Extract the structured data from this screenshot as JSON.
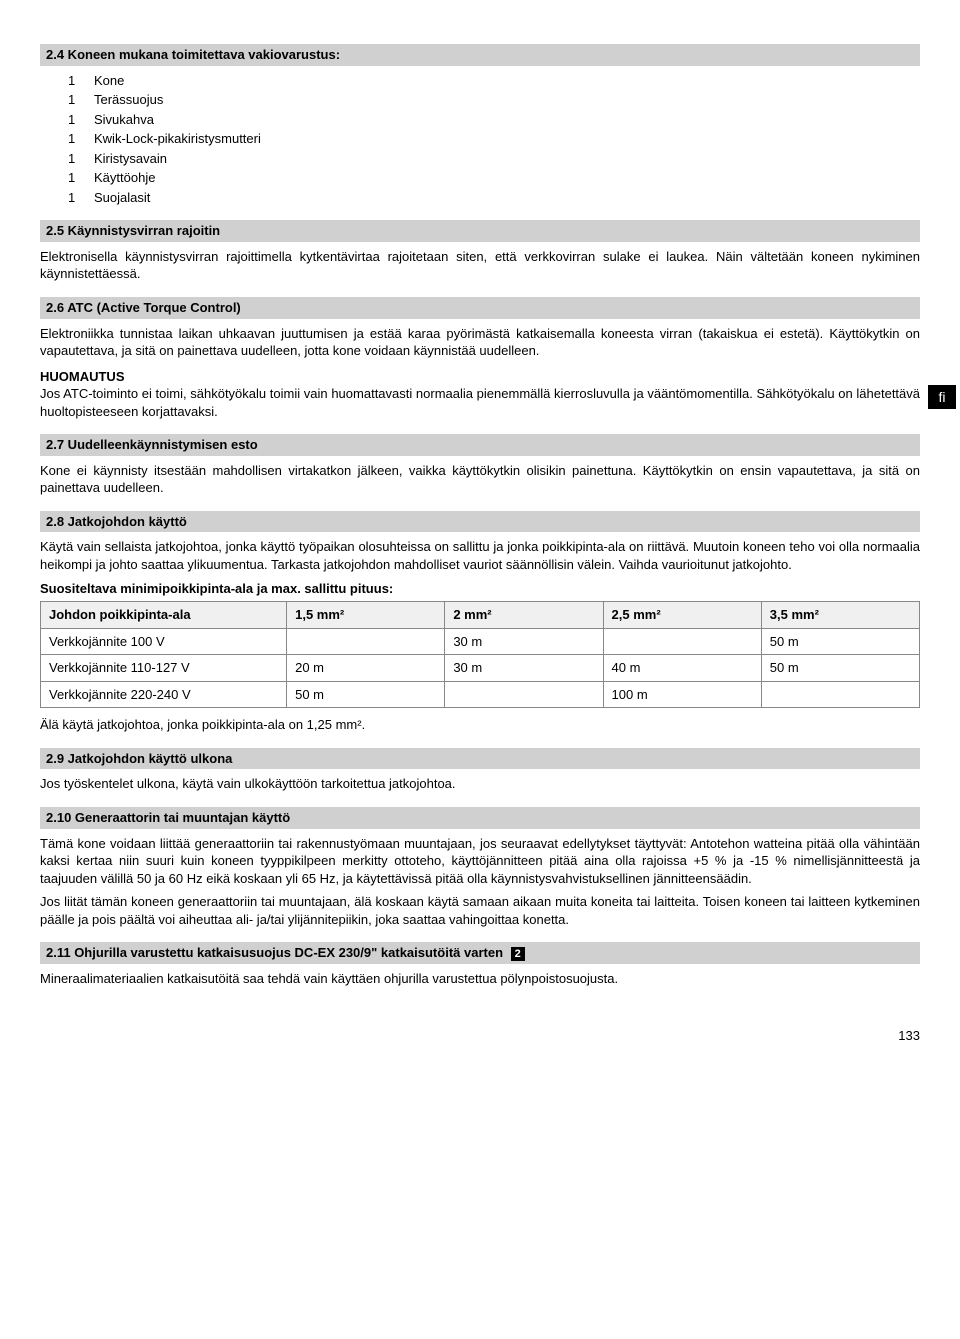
{
  "sections": {
    "s24": {
      "title": "2.4 Koneen mukana toimitettava vakiovarustus:"
    },
    "s25": {
      "title": "2.5 Käynnistysvirran rajoitin",
      "body": "Elektronisella käynnistysvirran rajoittimella kytkentävirtaa rajoitetaan siten, että verkkovirran sulake ei laukea. Näin vältetään koneen nykiminen käynnistettäessä."
    },
    "s26": {
      "title": "2.6 ATC (Active Torque Control)",
      "body": "Elektroniikka tunnistaa laikan uhkaavan juuttumisen ja estää karaa pyörimästä katkaisemalla koneesta virran (takaiskua ei estetä). Käyttökytkin on vapautettava, ja sitä on painettava uudelleen, jotta kone voidaan käynnistää uudelleen."
    },
    "s27": {
      "title": "2.7 Uudelleenkäynnistymisen esto",
      "body": "Kone ei käynnisty itsestään mahdollisen virtakatkon jälkeen, vaikka käyttökytkin olisikin painettuna. Käyttökytkin on ensin vapautettava, ja sitä on painettava uudelleen."
    },
    "s28": {
      "title": "2.8 Jatkojohdon käyttö",
      "body": "Käytä vain sellaista jatkojohtoa, jonka käyttö työpaikan olosuhteissa on sallittu ja jonka poikkipinta-ala on riittävä. Muutoin koneen teho voi olla normaalia heikompi ja johto saattaa ylikuumentua. Tarkasta jatkojohdon mahdolliset vauriot säännöllisin välein. Vaihda vaurioitunut jatkojohto.",
      "subhead": "Suositeltava minimipoikkipinta-ala ja max. sallittu pituus:",
      "footer": "Älä käytä jatkojohtoa, jonka poikkipinta-ala on 1,25 mm²."
    },
    "s29": {
      "title": "2.9 Jatkojohdon käyttö ulkona",
      "body": "Jos työskentelet ulkona, käytä vain ulkokäyttöön tarkoitettua jatkojohtoa."
    },
    "s210": {
      "title": "2.10 Generaattorin tai muuntajan käyttö",
      "body1": "Tämä kone voidaan liittää generaattoriin tai rakennustyömaan muuntajaan, jos seuraavat edellytykset täyttyvät: Antotehon watteina pitää olla vähintään kaksi kertaa niin suuri kuin koneen tyyppikilpeen merkitty ottoteho, käyttöjännitteen pitää aina olla rajoissa +5 % ja -15 % nimellisjännitteestä ja taajuuden välillä 50 ja 60 Hz eikä koskaan yli 65 Hz, ja käytettävissä pitää olla käynnistysvahvistuksellinen jännitteensäädin.",
      "body2": "Jos liität tämän koneen generaattoriin tai muuntajaan, älä koskaan käytä samaan aikaan muita koneita tai laitteita. Toisen koneen tai laitteen kytkeminen päälle ja pois päältä voi aiheuttaa ali- ja/tai ylijännitepiikin, joka saattaa vahingoittaa konetta."
    },
    "s211": {
      "title": "2.11 Ohjurilla varustettu katkaisusuojus DC‑EX 230/9\" katkaisutöitä varten",
      "ref": "2",
      "body": "Mineraalimateriaalien katkaisutöitä saa tehdä vain käyttäen ohjurilla varustettua pölynpoistosuojusta."
    }
  },
  "equip_list": [
    {
      "qty": "1",
      "item": "Kone"
    },
    {
      "qty": "1",
      "item": "Terässuojus"
    },
    {
      "qty": "1",
      "item": "Sivukahva"
    },
    {
      "qty": "1",
      "item": "Kwik-Lock-pikakiristysmutteri"
    },
    {
      "qty": "1",
      "item": "Kiristysavain"
    },
    {
      "qty": "1",
      "item": "Käyttöohje"
    },
    {
      "qty": "1",
      "item": "Suojalasit"
    }
  ],
  "huomautus": {
    "label": "HUOMAUTUS",
    "body": "Jos ATC-toiminto ei toimi, sähkötyökalu toimii vain huomattavasti normaalia pienemmällä kierrosluvulla ja vääntömomentilla. Sähkötyökalu on lähetettävä huoltopisteeseen korjattavaksi."
  },
  "lang_tab": "fi",
  "table": {
    "headers": [
      "Johdon poikkipinta-ala",
      "1,5 mm²",
      "2 mm²",
      "2,5 mm²",
      "3,5 mm²"
    ],
    "rows": [
      [
        "Verkkojännite 100 V",
        "",
        "30 m",
        "",
        "50 m"
      ],
      [
        "Verkkojännite 110‑127 V",
        "20 m",
        "30 m",
        "40 m",
        "50 m"
      ],
      [
        "Verkkojännite 220‑240 V",
        "50 m",
        "",
        "100 m",
        ""
      ]
    ],
    "col_widths": [
      "28%",
      "18%",
      "18%",
      "18%",
      "18%"
    ]
  },
  "page_number": "133"
}
